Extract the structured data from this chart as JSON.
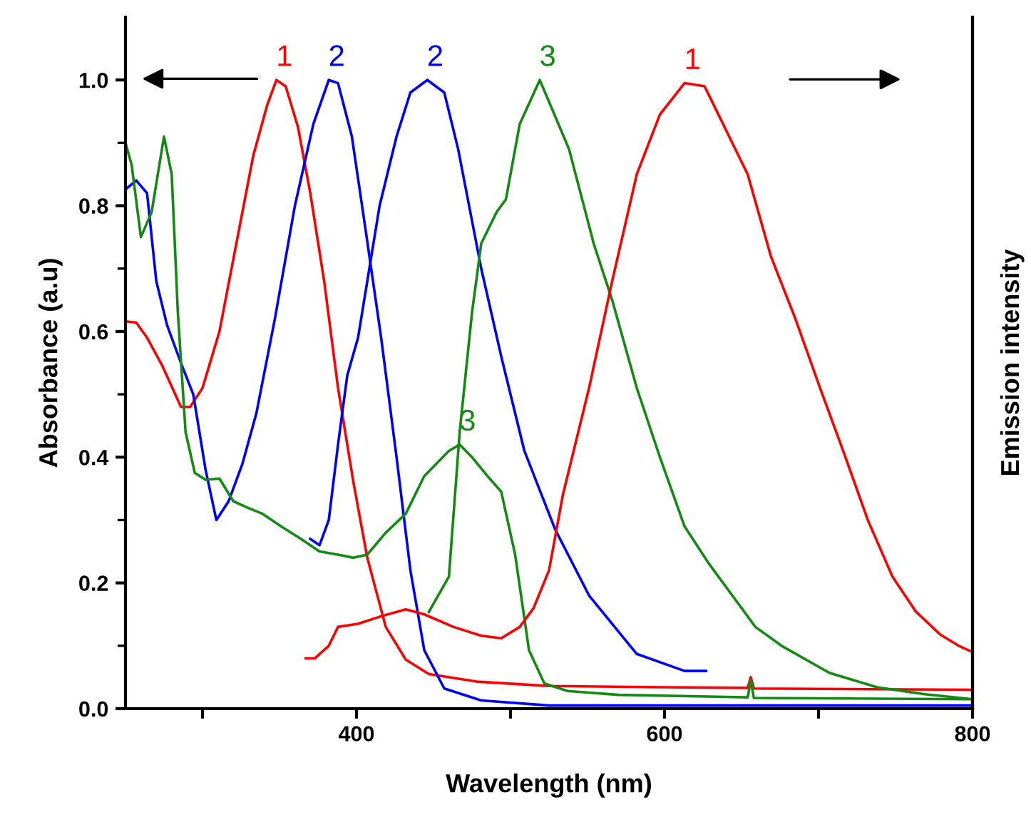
{
  "chart_data": {
    "type": "line",
    "xlabel": "Wavelength (nm)",
    "ylabel": "Absorbance (a.u)",
    "y2label": "Emission intensity",
    "xlim": [
      250,
      800
    ],
    "xticks": [
      {
        "value": 300,
        "label": null
      },
      400,
      {
        "value": 500,
        "label": null
      },
      600,
      {
        "value": 700,
        "label": null
      },
      800
    ],
    "ylim": [
      0,
      1.1
    ],
    "yticks": [
      {
        "value": 0,
        "label": "0.0"
      },
      {
        "value": 0.2,
        "label": "0.2"
      },
      {
        "value": 0.4,
        "label": "0.4"
      },
      {
        "value": 0.6,
        "label": "0.6"
      },
      {
        "value": 0.8,
        "label": "0.8"
      },
      {
        "value": 1,
        "label": "1.0"
      }
    ],
    "grid": false,
    "legend": false,
    "marker": "none",
    "line_style": "solid",
    "annotations": [
      {
        "text": "1",
        "x": 348,
        "y": 1.0
      },
      {
        "text": "2",
        "x": 382,
        "y": 1.0
      },
      {
        "text": "2",
        "x": 446,
        "y": 1.0
      },
      {
        "text": "3",
        "x": 519,
        "y": 1.0
      },
      {
        "text": "1",
        "x": 613,
        "y": 0.995
      },
      {
        "text": "3",
        "x": 467,
        "y": 0.42
      }
    ],
    "series": [
      {
        "color": "#ff0000",
        "x": [
          250,
          257,
          264,
          274,
          286,
          292,
          300,
          311,
          322,
          333,
          342,
          348,
          354,
          362,
          370,
          379,
          388,
          398,
          407,
          419,
          432,
          447,
          478,
          525,
          600,
          654,
          656,
          658,
          800
        ],
        "values": [
          0.616,
          0.614,
          0.59,
          0.545,
          0.48,
          0.48,
          0.51,
          0.6,
          0.74,
          0.88,
          0.96,
          1.0,
          0.99,
          0.925,
          0.82,
          0.68,
          0.51,
          0.36,
          0.24,
          0.13,
          0.078,
          0.055,
          0.043,
          0.036,
          0.034,
          0.033,
          0.05,
          0.032,
          0.03
        ]
      },
      {
        "color": "#0000ff",
        "x": [
          250,
          257,
          264,
          270,
          277,
          286,
          294,
          302,
          309,
          317,
          326,
          335,
          347,
          360,
          372,
          382,
          388,
          397,
          406,
          416,
          426,
          435,
          444,
          457,
          481,
          525,
          800
        ],
        "values": [
          0.826,
          0.84,
          0.82,
          0.68,
          0.61,
          0.55,
          0.5,
          0.38,
          0.3,
          0.33,
          0.39,
          0.47,
          0.62,
          0.8,
          0.93,
          1.0,
          0.995,
          0.91,
          0.76,
          0.59,
          0.4,
          0.22,
          0.093,
          0.032,
          0.013,
          0.005,
          0.005
        ]
      },
      {
        "color": "#0000ff",
        "x": [
          370,
          376,
          382,
          388,
          394,
          401,
          407,
          415,
          426,
          435,
          446,
          457,
          466,
          481,
          494,
          509,
          529,
          551,
          582,
          613,
          627
        ],
        "values": [
          0.27,
          0.26,
          0.3,
          0.42,
          0.53,
          0.59,
          0.68,
          0.8,
          0.91,
          0.98,
          1.0,
          0.98,
          0.89,
          0.7,
          0.56,
          0.41,
          0.285,
          0.18,
          0.087,
          0.06,
          0.06
        ]
      },
      {
        "color": "#138a13",
        "x": [
          250,
          254,
          260,
          267,
          275,
          280,
          284,
          289,
          295,
          302,
          311,
          320,
          329,
          339,
          351,
          364,
          376,
          388,
          398,
          407,
          419,
          432,
          444,
          460,
          467,
          475,
          485,
          494,
          503,
          512,
          522,
          537,
          570,
          654,
          656,
          658,
          800
        ],
        "values": [
          0.9,
          0.865,
          0.75,
          0.79,
          0.91,
          0.85,
          0.63,
          0.44,
          0.375,
          0.364,
          0.366,
          0.33,
          0.32,
          0.31,
          0.29,
          0.27,
          0.25,
          0.245,
          0.24,
          0.245,
          0.28,
          0.31,
          0.37,
          0.41,
          0.42,
          0.4,
          0.37,
          0.345,
          0.245,
          0.093,
          0.04,
          0.028,
          0.022,
          0.018,
          0.045,
          0.017,
          0.015
        ]
      },
      {
        "color": "#138a13",
        "x": [
          447,
          460,
          467,
          475,
          481,
          491,
          497,
          506,
          519,
          538,
          554,
          566,
          582,
          597,
          613,
          629,
          644,
          659,
          676,
          707,
          738,
          769,
          800
        ],
        "values": [
          0.154,
          0.21,
          0.44,
          0.63,
          0.74,
          0.79,
          0.81,
          0.93,
          1.0,
          0.89,
          0.74,
          0.65,
          0.51,
          0.4,
          0.29,
          0.23,
          0.18,
          0.13,
          0.1,
          0.057,
          0.034,
          0.023,
          0.015
        ]
      },
      {
        "color": "#ff0000",
        "x": [
          367,
          373,
          382,
          388,
          401,
          416,
          432,
          444,
          463,
          481,
          494,
          506,
          515,
          525,
          534,
          551,
          566,
          582,
          597,
          613,
          626,
          638,
          654,
          669,
          685,
          701,
          716,
          732,
          748,
          763,
          779,
          791,
          800
        ],
        "values": [
          0.08,
          0.08,
          0.1,
          0.13,
          0.135,
          0.147,
          0.158,
          0.15,
          0.13,
          0.116,
          0.112,
          0.13,
          0.16,
          0.22,
          0.34,
          0.51,
          0.68,
          0.85,
          0.945,
          0.995,
          0.99,
          0.93,
          0.85,
          0.72,
          0.62,
          0.51,
          0.41,
          0.3,
          0.21,
          0.155,
          0.118,
          0.1,
          0.09
        ]
      }
    ]
  }
}
